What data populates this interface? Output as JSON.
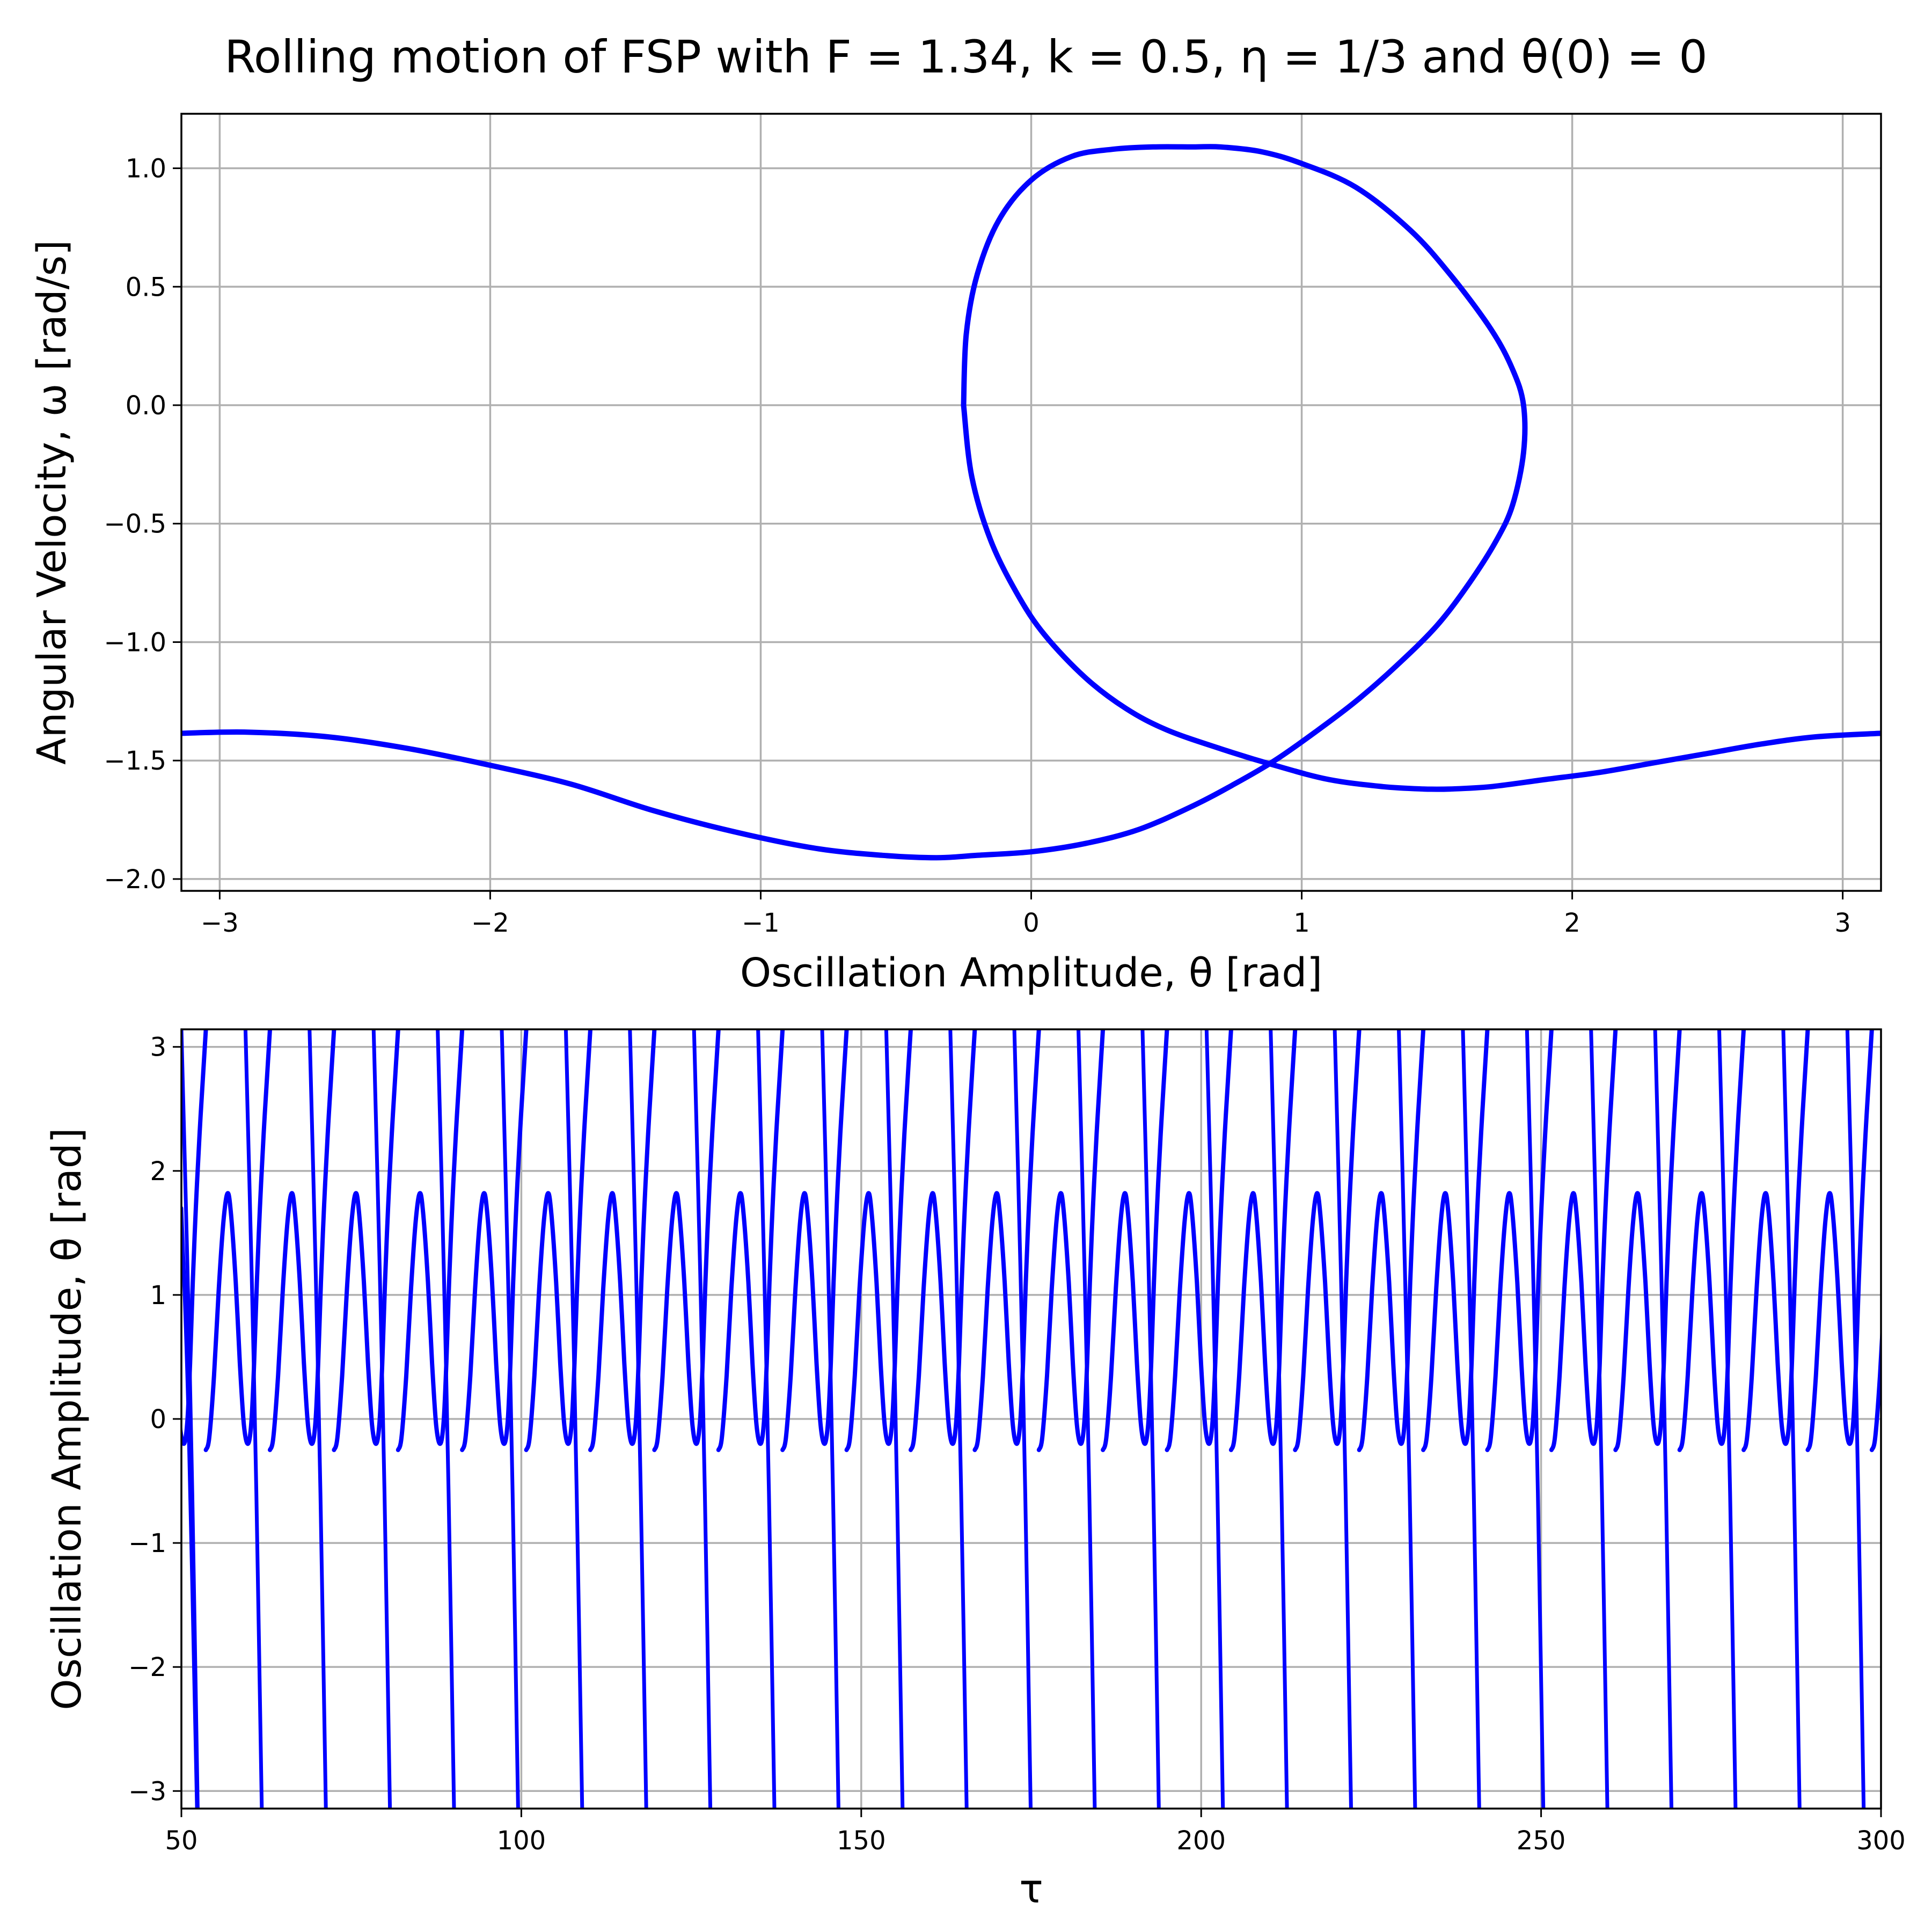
{
  "figure_title": "Rolling motion of FSP with F = 1.34, k = 0.5, η = 1/3 and  θ(0) = 0",
  "chart_data": [
    {
      "type": "line",
      "subtype": "phase-portrait",
      "xlabel": "Oscillation Amplitude, θ [rad]",
      "ylabel": "Angular Velocity, ω [rad/s]",
      "xlim": [
        -3.14159,
        3.14159
      ],
      "ylim": [
        -2.05,
        1.23
      ],
      "xticks": [
        -3,
        -2,
        -1,
        0,
        1,
        2,
        3
      ],
      "xtick_labels": [
        "−3",
        "−2",
        "−1",
        "0",
        "1",
        "2",
        "3"
      ],
      "yticks": [
        1.0,
        0.5,
        0.0,
        -0.5,
        -1.0,
        -1.5,
        -2.0
      ],
      "ytick_labels": [
        "1.0",
        "0.5",
        "0.0",
        "−0.5",
        "−1.0",
        "−1.5",
        "−2.0"
      ],
      "grid": true,
      "color": "#0000ff",
      "series": [
        {
          "x": [
            -0.25,
            -0.24,
            -0.2,
            -0.12,
            0,
            0.15,
            0.3,
            0.45,
            0.6,
            0.7,
            0.85,
            1.0,
            1.2,
            1.4,
            1.55,
            1.7,
            1.78,
            1.82,
            1.82,
            1.78,
            1.72,
            1.62,
            1.5,
            1.35,
            1.2,
            1.05,
            0.9,
            0.75,
            0.6,
            0.4,
            0.2,
            0,
            -0.2,
            -0.35,
            -0.55,
            -0.8,
            -1.1,
            -1.4,
            -1.7,
            -2.0,
            -2.3,
            -2.6,
            -2.9,
            -3.14159
          ],
          "y": [
            0,
            0.3,
            0.55,
            0.78,
            0.95,
            1.05,
            1.08,
            1.09,
            1.09,
            1.09,
            1.07,
            1.02,
            0.92,
            0.74,
            0.55,
            0.32,
            0.15,
            0,
            -0.2,
            -0.42,
            -0.57,
            -0.75,
            -0.93,
            -1.1,
            -1.25,
            -1.38,
            -1.5,
            -1.6,
            -1.69,
            -1.79,
            -1.85,
            -1.885,
            -1.9,
            -1.91,
            -1.9,
            -1.87,
            -1.8,
            -1.71,
            -1.6,
            -1.52,
            -1.45,
            -1.4,
            -1.38,
            -1.385
          ]
        },
        {
          "x": [
            3.14159,
            2.9,
            2.7,
            2.5,
            2.3,
            2.1,
            1.9,
            1.7,
            1.55,
            1.45,
            1.3,
            1.1,
            0.9,
            0.7,
            0.5,
            0.35,
            0.2,
            0.05,
            -0.05,
            -0.15,
            -0.22,
            -0.25
          ],
          "y": [
            -1.385,
            -1.4,
            -1.43,
            -1.47,
            -1.51,
            -1.55,
            -1.58,
            -1.61,
            -1.62,
            -1.62,
            -1.61,
            -1.58,
            -1.52,
            -1.45,
            -1.37,
            -1.28,
            -1.15,
            -0.97,
            -0.8,
            -0.57,
            -0.3,
            0
          ]
        }
      ]
    },
    {
      "type": "line",
      "subtype": "time-series",
      "xlabel": "τ",
      "ylabel": "Oscillation Amplitude, θ [rad]",
      "xlim": [
        50,
        300
      ],
      "ylim": [
        -3.14159,
        3.14159
      ],
      "xticks": [
        50,
        100,
        150,
        200,
        250,
        300
      ],
      "xtick_labels": [
        "50",
        "100",
        "150",
        "200",
        "250",
        "300"
      ],
      "yticks": [
        3,
        2,
        1,
        0,
        -1,
        -2,
        -3
      ],
      "ytick_labels": [
        "3",
        "2",
        "1",
        "0",
        "−1",
        "−2",
        "−3"
      ],
      "grid": true,
      "color": "#0000ff",
      "period": 9.425,
      "series": [
        {
          "phase_x": [
            0,
            0.5,
            1.2,
            1.9,
            2.6,
            3.2,
            3.7,
            4.4,
            5.0,
            5.6,
            6.2,
            6.7,
            7.1,
            7.5,
            7.95,
            8.5,
            9.1,
            9.425
          ],
          "phase_y": [
            -0.25,
            -0.15,
            0.35,
            1.05,
            1.6,
            1.82,
            1.65,
            1.1,
            0.45,
            -0.05,
            -0.2,
            -0.02,
            0.45,
            1.1,
            1.7,
            2.3,
            2.85,
            3.14159
          ],
          "start_x": 50,
          "start_y": 1.7
        }
      ]
    }
  ]
}
